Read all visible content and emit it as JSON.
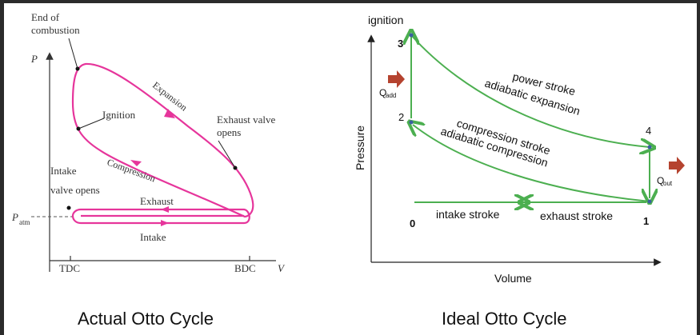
{
  "captions": {
    "left": "Actual Otto Cycle",
    "right": "Ideal Otto Cycle"
  },
  "actual": {
    "labels": {
      "end_of": "End of",
      "combustion": "combustion",
      "p_axis": "P",
      "ignition": "Ignition",
      "expansion": "Expansion",
      "exhaust_valve": "Exhaust valve",
      "opens": "opens",
      "intake_valve": "Intake",
      "valve_opens": "valve opens",
      "compression": "Compression",
      "exhaust": "Exhaust",
      "intake": "Intake",
      "patm": "P",
      "patm_sub": "atm",
      "tdc": "TDC",
      "bdc": "BDC",
      "v_axis": "V"
    },
    "colors": {
      "cycle": "#e6359b",
      "axis": "#333333"
    }
  },
  "ideal": {
    "labels": {
      "ignition": "ignition",
      "pressure": "Pressure",
      "volume": "Volume",
      "pt0": "0",
      "pt1": "1",
      "pt2": "2",
      "pt3": "3",
      "pt4": "4",
      "qadd": "Q",
      "qadd_sub": "add",
      "qout": "Q",
      "qout_sub": "out",
      "power_stroke": "power stroke",
      "adiabatic_expansion": "adiabatic expansion",
      "compression_stroke": "compression stroke",
      "adiabatic_compression": "adiabatic compression",
      "intake_stroke": "intake stroke",
      "exhaust_stroke": "exhaust stroke"
    },
    "colors": {
      "cycle": "#4caf50",
      "heat_arrow": "#b5432f",
      "points": "#3a5fa0"
    }
  }
}
